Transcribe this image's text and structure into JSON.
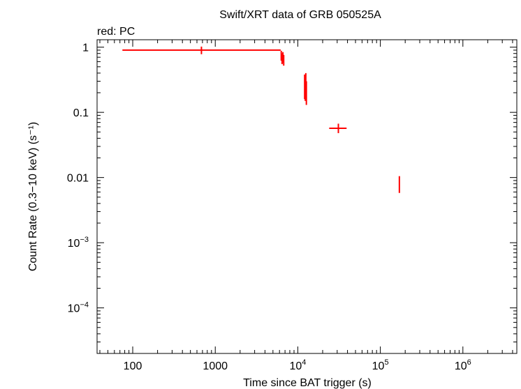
{
  "chart_data": {
    "type": "scatter",
    "title": "Swift/XRT data of GRB 050525A",
    "subtitle": "red: PC",
    "xlabel": "Time since BAT trigger (s)",
    "ylabel": "Count Rate (0.3−10 keV) (s⁻¹)",
    "x_scale": "log",
    "y_scale": "log",
    "xlim": [
      37,
      4500000
    ],
    "ylim": [
      2e-05,
      1.3
    ],
    "x_ticks": [
      {
        "value": 100,
        "label": "100"
      },
      {
        "value": 1000,
        "label": "1000"
      },
      {
        "value": 10000,
        "base": "10",
        "exp": "4"
      },
      {
        "value": 100000,
        "base": "10",
        "exp": "5"
      },
      {
        "value": 1000000,
        "base": "10",
        "exp": "6"
      }
    ],
    "y_ticks": [
      {
        "value": 1,
        "label": "1"
      },
      {
        "value": 0.1,
        "label": "0.1"
      },
      {
        "value": 0.01,
        "label": "0.01"
      },
      {
        "value": 0.001,
        "base": "10",
        "exp": "−3"
      },
      {
        "value": 0.0001,
        "base": "10",
        "exp": "−4"
      }
    ],
    "grid": false,
    "series": [
      {
        "color": "#ff0000",
        "points": [
          {
            "x": 680,
            "xlo": 75,
            "xhi": 6200,
            "y": 0.9,
            "ylo": 0.78,
            "yhi": 1.02
          },
          {
            "x": 6300,
            "y": 0.74,
            "ylo": 0.62,
            "yhi": 0.88
          },
          {
            "x": 6450,
            "y": 0.66,
            "ylo": 0.55,
            "yhi": 0.8
          },
          {
            "x": 6600,
            "y": 0.7,
            "ylo": 0.58,
            "yhi": 0.84
          },
          {
            "x": 6750,
            "y": 0.63,
            "ylo": 0.52,
            "yhi": 0.76
          },
          {
            "x": 12100,
            "y": 0.26,
            "ylo": 0.16,
            "yhi": 0.38
          },
          {
            "x": 12300,
            "y": 0.22,
            "ylo": 0.15,
            "yhi": 0.32
          },
          {
            "x": 12500,
            "y": 0.28,
            "ylo": 0.18,
            "yhi": 0.4
          },
          {
            "x": 12700,
            "y": 0.2,
            "ylo": 0.13,
            "yhi": 0.3
          },
          {
            "x": 31000,
            "xlo": 24000,
            "xhi": 39000,
            "y": 0.057,
            "ylo": 0.048,
            "yhi": 0.067
          },
          {
            "x": 170000,
            "y": 0.0078,
            "ylo": 0.0058,
            "yhi": 0.0105
          }
        ]
      }
    ]
  }
}
